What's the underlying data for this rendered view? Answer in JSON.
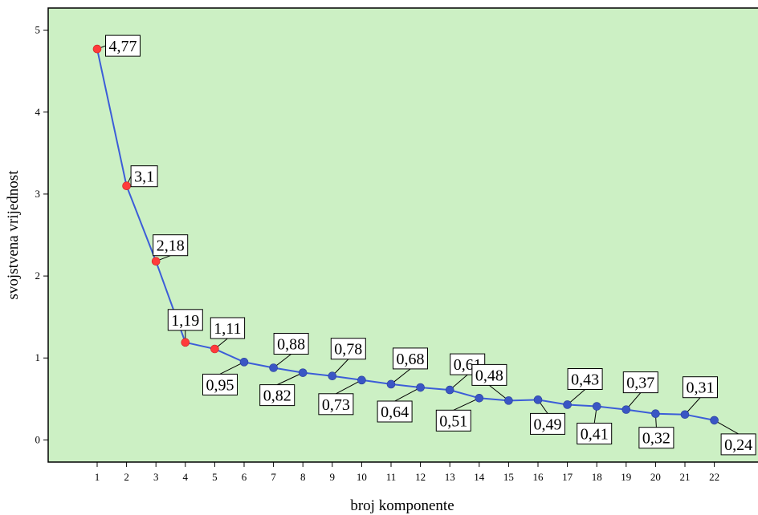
{
  "chart_data": {
    "type": "line",
    "title": "",
    "xlabel": "broj komponente",
    "ylabel": "svojstvena vrijednost",
    "categories": [
      "1",
      "2",
      "3",
      "4",
      "5",
      "6",
      "7",
      "8",
      "9",
      "10",
      "11",
      "12",
      "13",
      "14",
      "15",
      "16",
      "17",
      "18",
      "19",
      "20",
      "21",
      "22"
    ],
    "values": [
      4.77,
      3.1,
      2.18,
      1.19,
      1.11,
      0.95,
      0.88,
      0.82,
      0.78,
      0.73,
      0.68,
      0.64,
      0.61,
      0.51,
      0.48,
      0.49,
      0.43,
      0.41,
      0.37,
      0.32,
      0.31,
      0.24
    ],
    "data_labels": [
      "4,77",
      "3,1",
      "2,18",
      "1,19",
      "1,11",
      "0,95",
      "0,88",
      "0,82",
      "0,78",
      "0,73",
      "0,68",
      "0,64",
      "0,61",
      "0,51",
      "0,48",
      "0,49",
      "0,43",
      "0,41",
      "0,37",
      "0,32",
      "0,31",
      "0,24"
    ],
    "yticks": [
      0,
      1,
      2,
      3,
      4,
      5
    ],
    "ytick_labels": [
      "0",
      "1",
      "2",
      "3",
      "4",
      "5"
    ],
    "ylim": [
      -0.27,
      5.27
    ],
    "grid": false,
    "legend": "none",
    "colors": {
      "plot_background": "#ccf0c4",
      "line": "#3c5dd8",
      "marker_above_one": "#ff3b3b",
      "marker_below_one": "#3a56c4",
      "frame": "#000000"
    }
  }
}
